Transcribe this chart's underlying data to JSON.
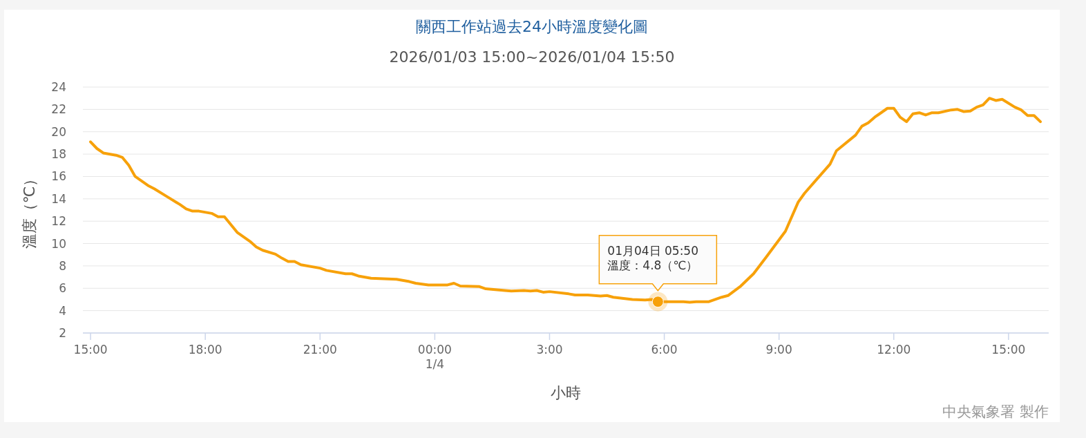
{
  "chart_data": {
    "type": "line",
    "title": "關西工作站過去24小時溫度變化圖",
    "subtitle": "2026/01/03 15:00~2026/01/04 15:50",
    "xlabel": "小時",
    "ylabel": "溫度（℃）",
    "annotations": [
      {
        "text": "01月04日 05:50\n溫度：4.8（℃）",
        "x": "2026-01-04T05:50",
        "y": 4.8
      },
      "中央氣象署 製作"
    ],
    "x": [
      "2026-01-03T15:00",
      "2026-01-03T15:10",
      "2026-01-03T15:20",
      "2026-01-03T15:40",
      "2026-01-03T15:50",
      "2026-01-03T16:00",
      "2026-01-03T16:10",
      "2026-01-03T16:30",
      "2026-01-03T16:40",
      "2026-01-03T17:00",
      "2026-01-03T17:20",
      "2026-01-03T17:30",
      "2026-01-03T17:40",
      "2026-01-03T17:50",
      "2026-01-03T18:10",
      "2026-01-03T18:20",
      "2026-01-03T18:30",
      "2026-01-03T18:50",
      "2026-01-03T19:10",
      "2026-01-03T19:20",
      "2026-01-03T19:30",
      "2026-01-03T19:50",
      "2026-01-03T20:00",
      "2026-01-03T20:10",
      "2026-01-03T20:20",
      "2026-01-03T20:30",
      "2026-01-03T21:00",
      "2026-01-03T21:10",
      "2026-01-03T21:40",
      "2026-01-03T21:50",
      "2026-01-03T22:00",
      "2026-01-03T22:20",
      "2026-01-03T23:00",
      "2026-01-03T23:20",
      "2026-01-03T23:30",
      "2026-01-03T23:50",
      "2026-01-04T00:20",
      "2026-01-04T00:30",
      "2026-01-04T00:40",
      "2026-01-04T01:10",
      "2026-01-04T01:20",
      "2026-01-04T01:50",
      "2026-01-04T02:00",
      "2026-01-04T02:20",
      "2026-01-04T02:30",
      "2026-01-04T02:40",
      "2026-01-04T02:50",
      "2026-01-04T03:00",
      "2026-01-04T03:30",
      "2026-01-04T03:40",
      "2026-01-04T04:00",
      "2026-01-04T04:20",
      "2026-01-04T04:30",
      "2026-01-04T04:40",
      "2026-01-04T05:10",
      "2026-01-04T05:30",
      "2026-01-04T05:40",
      "2026-01-04T05:50",
      "2026-01-04T06:30",
      "2026-01-04T06:40",
      "2026-01-04T06:50",
      "2026-01-04T07:10",
      "2026-01-04T07:20",
      "2026-01-04T07:30",
      "2026-01-04T07:40",
      "2026-01-04T08:00",
      "2026-01-04T08:20",
      "2026-01-04T08:40",
      "2026-01-04T09:10",
      "2026-01-04T09:30",
      "2026-01-04T09:40",
      "2026-01-04T10:00",
      "2026-01-04T10:20",
      "2026-01-04T10:30",
      "2026-01-04T11:00",
      "2026-01-04T11:10",
      "2026-01-04T11:20",
      "2026-01-04T11:30",
      "2026-01-04T11:50",
      "2026-01-04T12:00",
      "2026-01-04T12:10",
      "2026-01-04T12:20",
      "2026-01-04T12:30",
      "2026-01-04T12:40",
      "2026-01-04T12:50",
      "2026-01-04T13:00",
      "2026-01-04T13:10",
      "2026-01-04T13:30",
      "2026-01-04T13:40",
      "2026-01-04T13:50",
      "2026-01-04T14:00",
      "2026-01-04T14:10",
      "2026-01-04T14:20",
      "2026-01-04T14:30",
      "2026-01-04T14:40",
      "2026-01-04T14:50",
      "2026-01-04T15:10",
      "2026-01-04T15:20",
      "2026-01-04T15:30",
      "2026-01-04T15:40",
      "2026-01-04T15:50"
    ],
    "series": [
      {
        "color": "#f7a10a",
        "values": [
          19.1,
          18.5,
          18.1,
          17.9,
          17.7,
          17.0,
          16.0,
          15.2,
          14.9,
          14.2,
          13.5,
          13.1,
          12.9,
          12.9,
          12.7,
          12.4,
          12.4,
          11.0,
          10.2,
          9.7,
          9.4,
          9.05,
          8.7,
          8.4,
          8.4,
          8.1,
          7.8,
          7.6,
          7.3,
          7.3,
          7.1,
          6.9,
          6.8,
          6.6,
          6.45,
          6.3,
          6.3,
          6.45,
          6.2,
          6.15,
          5.95,
          5.8,
          5.75,
          5.8,
          5.75,
          5.8,
          5.65,
          5.7,
          5.5,
          5.4,
          5.4,
          5.3,
          5.35,
          5.2,
          5.0,
          4.95,
          5.0,
          4.8,
          4.8,
          4.75,
          4.8,
          4.8,
          5.0,
          5.2,
          5.35,
          6.2,
          7.3,
          8.8,
          11.1,
          13.7,
          14.5,
          15.8,
          17.1,
          18.3,
          19.7,
          20.5,
          20.8,
          21.3,
          22.1,
          22.1,
          21.3,
          20.9,
          21.6,
          21.7,
          21.5,
          21.7,
          21.7,
          21.95,
          22.0,
          21.8,
          21.85,
          22.2,
          22.4,
          23.0,
          22.8,
          22.9,
          22.2,
          21.95,
          21.45,
          21.45,
          20.9
        ]
      }
    ],
    "xlim": [
      "2026-01-03T14:48",
      "2026-01-04T16:03"
    ],
    "ylim": [
      2,
      24
    ],
    "xticks": [
      {
        "value": "2026-01-03T15:00",
        "label": "15:00"
      },
      {
        "value": "2026-01-03T18:00",
        "label": "18:00"
      },
      {
        "value": "2026-01-03T21:00",
        "label": "21:00"
      },
      {
        "value": "2026-01-04T00:00",
        "label": "00:00\n1/4"
      },
      {
        "value": "2026-01-04T03:00",
        "label": "3:00"
      },
      {
        "value": "2026-01-04T06:00",
        "label": "6:00"
      },
      {
        "value": "2026-01-04T09:00",
        "label": "9:00"
      },
      {
        "value": "2026-01-04T12:00",
        "label": "12:00"
      },
      {
        "value": "2026-01-04T15:00",
        "label": "15:00"
      }
    ],
    "yticks": [
      2,
      4,
      6,
      8,
      10,
      12,
      14,
      16,
      18,
      20,
      22,
      24
    ],
    "grid": "y"
  }
}
